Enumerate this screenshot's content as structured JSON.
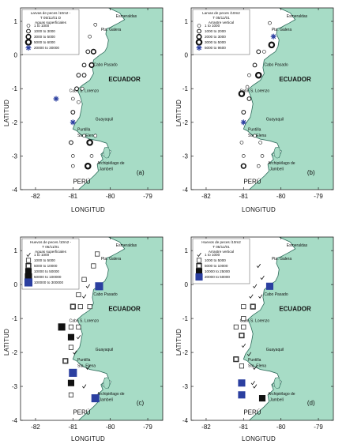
{
  "axes": {
    "xlabel": "LONGITUD",
    "ylabel": "LATITUD",
    "x_ticks": [
      "-82",
      "-81",
      "-80",
      "-79"
    ],
    "y_ticks": [
      "1",
      "0",
      "-1",
      "-2",
      "-3",
      "-4"
    ],
    "xlim": [
      -82.4,
      -78.6
    ],
    "ylim": [
      -4.0,
      1.4
    ]
  },
  "colors": {
    "land": "#a7dcc6",
    "coast": "#2d6a5a",
    "blue_marker": "#2b3fa0"
  },
  "place_labels": {
    "esmeraldas": "Esmeraldas",
    "pta_galera": "Pta. Galera",
    "cabo_pasado": "Cabo Pasado",
    "ecuador": "ECUADOR",
    "cabo_s_lorenzo": "Cabo S. Lorenzo",
    "guayaquil": "Guayaquil",
    "puntilla_line1": "Puntilla",
    "puntilla_line2": "Sta. Elena",
    "jambeli_line1": "Archipiélago de",
    "jambeli_line2": "Jambelí",
    "peru": "PERÚ"
  },
  "panels": [
    {
      "id": "a",
      "panel_label": "(a)",
      "legend_title": [
        "Larvas de peces /10m2 -",
        "T 05/11/01 D",
        "Aguas superficiales"
      ],
      "legend_items": [
        "1  to  1000",
        "1000  to  3000",
        "3000  to  5000",
        "5000  to  6000",
        "20000  to  30000"
      ],
      "marker_type": "circle",
      "stations": [
        {
          "lon": -80.55,
          "lat": 0.55,
          "c": 0
        },
        {
          "lon": -80.4,
          "lat": 0.9,
          "c": 0
        },
        {
          "lon": -80.6,
          "lat": 0.1,
          "c": 1
        },
        {
          "lon": -80.45,
          "lat": 0.1,
          "c": 2
        },
        {
          "lon": -80.7,
          "lat": -0.3,
          "c": 1
        },
        {
          "lon": -80.5,
          "lat": -0.3,
          "c": 2
        },
        {
          "lon": -80.85,
          "lat": -0.6,
          "c": 1
        },
        {
          "lon": -80.7,
          "lat": -0.6,
          "c": 1
        },
        {
          "lon": -80.9,
          "lat": -1.0,
          "c": 1
        },
        {
          "lon": -80.75,
          "lat": -1.0,
          "c": 0
        },
        {
          "lon": -81.45,
          "lat": -1.3,
          "c": 4
        },
        {
          "lon": -81.0,
          "lat": -1.3,
          "c": 0
        },
        {
          "lon": -80.85,
          "lat": -1.4,
          "c": 0
        },
        {
          "lon": -81.0,
          "lat": -1.7,
          "c": 1
        },
        {
          "lon": -81.0,
          "lat": -2.0,
          "c": 4
        },
        {
          "lon": -80.7,
          "lat": -2.4,
          "c": 0
        },
        {
          "lon": -80.4,
          "lat": -2.4,
          "c": 0
        },
        {
          "lon": -81.05,
          "lat": -2.6,
          "c": 1
        },
        {
          "lon": -80.55,
          "lat": -2.6,
          "c": 3
        },
        {
          "lon": -81.0,
          "lat": -3.0,
          "c": 0
        },
        {
          "lon": -80.5,
          "lat": -3.0,
          "c": 0
        },
        {
          "lon": -81.0,
          "lat": -3.3,
          "c": 0
        },
        {
          "lon": -80.6,
          "lat": -3.3,
          "c": 3
        }
      ]
    },
    {
      "id": "b",
      "panel_label": "(b)",
      "legend_title": [
        "Larvas de peces /10m2",
        "T 05/11/01",
        "Arrastre vertical"
      ],
      "legend_items": [
        "1  to  1000",
        "1000  to  2000",
        "2000  to  3000",
        "3000  to  5000",
        "5000  to  9600"
      ],
      "marker_type": "circle",
      "stations": [
        {
          "lon": -80.3,
          "lat": 0.95,
          "c": 0
        },
        {
          "lon": -80.2,
          "lat": 0.55,
          "c": 4
        },
        {
          "lon": -80.25,
          "lat": 0.3,
          "c": 3
        },
        {
          "lon": -80.6,
          "lat": 0.1,
          "c": 1
        },
        {
          "lon": -80.45,
          "lat": 0.1,
          "c": 0
        },
        {
          "lon": -80.7,
          "lat": -0.3,
          "c": 1
        },
        {
          "lon": -80.85,
          "lat": -0.6,
          "c": 0
        },
        {
          "lon": -80.6,
          "lat": -0.6,
          "c": 3
        },
        {
          "lon": -80.9,
          "lat": -0.95,
          "c": 0
        },
        {
          "lon": -81.05,
          "lat": -1.15,
          "c": 3
        },
        {
          "lon": -80.85,
          "lat": -1.3,
          "c": 1
        },
        {
          "lon": -81.0,
          "lat": -1.7,
          "c": 1
        },
        {
          "lon": -81.0,
          "lat": -2.0,
          "c": 4
        },
        {
          "lon": -80.7,
          "lat": -2.4,
          "c": 0
        },
        {
          "lon": -81.05,
          "lat": -2.6,
          "c": 0
        },
        {
          "lon": -80.55,
          "lat": -2.6,
          "c": 0
        },
        {
          "lon": -81.0,
          "lat": -3.0,
          "c": 0
        },
        {
          "lon": -80.5,
          "lat": -3.0,
          "c": 0
        },
        {
          "lon": -81.0,
          "lat": -3.3,
          "c": 2
        },
        {
          "lon": -80.6,
          "lat": -3.3,
          "c": 0
        }
      ]
    },
    {
      "id": "c",
      "panel_label": "(c)",
      "legend_title": [
        "Huevos de peces /10m2 -",
        "T 05/11/01",
        "Aguas superficiales"
      ],
      "legend_items": [
        "1  to  1000",
        "1000  to  5000",
        "5000  to  10000",
        "10000  to  50000",
        "50000  to  100000",
        "100000  to  300000"
      ],
      "marker_type": "square",
      "stations": [
        {
          "lon": -80.45,
          "lat": 0.55,
          "c": 1
        },
        {
          "lon": -80.35,
          "lat": 0.9,
          "c": 1
        },
        {
          "lon": -80.7,
          "lat": 0.15,
          "c": 1
        },
        {
          "lon": -80.6,
          "lat": -0.05,
          "c": 0
        },
        {
          "lon": -80.3,
          "lat": -0.05,
          "c": 5
        },
        {
          "lon": -80.85,
          "lat": -0.3,
          "c": 1
        },
        {
          "lon": -81.0,
          "lat": -0.65,
          "c": 2
        },
        {
          "lon": -80.8,
          "lat": -0.65,
          "c": 1
        },
        {
          "lon": -80.55,
          "lat": -0.65,
          "c": 1
        },
        {
          "lon": -80.7,
          "lat": -0.35,
          "c": 0
        },
        {
          "lon": -81.3,
          "lat": -1.25,
          "c": 4
        },
        {
          "lon": -81.05,
          "lat": -1.25,
          "c": 1
        },
        {
          "lon": -80.85,
          "lat": -1.25,
          "c": 1
        },
        {
          "lon": -81.05,
          "lat": -1.55,
          "c": 3
        },
        {
          "lon": -80.85,
          "lat": -1.55,
          "c": 0
        },
        {
          "lon": -81.05,
          "lat": -1.85,
          "c": 1
        },
        {
          "lon": -80.95,
          "lat": -2.0,
          "c": 0
        },
        {
          "lon": -81.2,
          "lat": -2.25,
          "c": 2
        },
        {
          "lon": -81.0,
          "lat": -2.6,
          "c": 5
        },
        {
          "lon": -80.6,
          "lat": -2.45,
          "c": 0
        },
        {
          "lon": -81.05,
          "lat": -2.9,
          "c": 3
        },
        {
          "lon": -81.05,
          "lat": -3.25,
          "c": 1
        },
        {
          "lon": -80.7,
          "lat": -3.0,
          "c": 0
        },
        {
          "lon": -80.4,
          "lat": -3.35,
          "c": 5
        }
      ]
    },
    {
      "id": "d",
      "panel_label": "(d)",
      "legend_title": [
        "Huevos de peces /10m2",
        "T 05/11/01",
        "Arrastre vertical"
      ],
      "legend_items": [
        "1  to  1000",
        "1000  to  5000",
        "5000  to  10000",
        "10000  to  25000",
        "20000  to  50000"
      ],
      "marker_type": "square",
      "stations": [
        {
          "lon": -80.6,
          "lat": 0.55,
          "c": 0
        },
        {
          "lon": -80.5,
          "lat": 0.2,
          "c": 0
        },
        {
          "lon": -80.7,
          "lat": -0.05,
          "c": 0
        },
        {
          "lon": -80.3,
          "lat": -0.05,
          "c": 4
        },
        {
          "lon": -80.55,
          "lat": -0.35,
          "c": 0
        },
        {
          "lon": -80.8,
          "lat": -0.35,
          "c": 0
        },
        {
          "lon": -81.0,
          "lat": -0.65,
          "c": 1
        },
        {
          "lon": -80.75,
          "lat": -0.65,
          "c": 2
        },
        {
          "lon": -81.0,
          "lat": -1.0,
          "c": 1
        },
        {
          "lon": -81.2,
          "lat": -1.25,
          "c": 1
        },
        {
          "lon": -81.0,
          "lat": -1.25,
          "c": 1
        },
        {
          "lon": -81.05,
          "lat": -1.5,
          "c": 2
        },
        {
          "lon": -81.0,
          "lat": -1.8,
          "c": 0
        },
        {
          "lon": -80.85,
          "lat": -2.05,
          "c": 0
        },
        {
          "lon": -81.2,
          "lat": -2.2,
          "c": 2
        },
        {
          "lon": -81.05,
          "lat": -2.4,
          "c": 1
        },
        {
          "lon": -80.7,
          "lat": -2.45,
          "c": 0
        },
        {
          "lon": -81.05,
          "lat": -2.9,
          "c": 4
        },
        {
          "lon": -80.75,
          "lat": -2.9,
          "c": 0
        },
        {
          "lon": -81.05,
          "lat": -3.25,
          "c": 4
        },
        {
          "lon": -80.5,
          "lat": -3.35,
          "c": 3
        },
        {
          "lon": -80.7,
          "lat": -3.0,
          "c": 0
        }
      ]
    }
  ]
}
